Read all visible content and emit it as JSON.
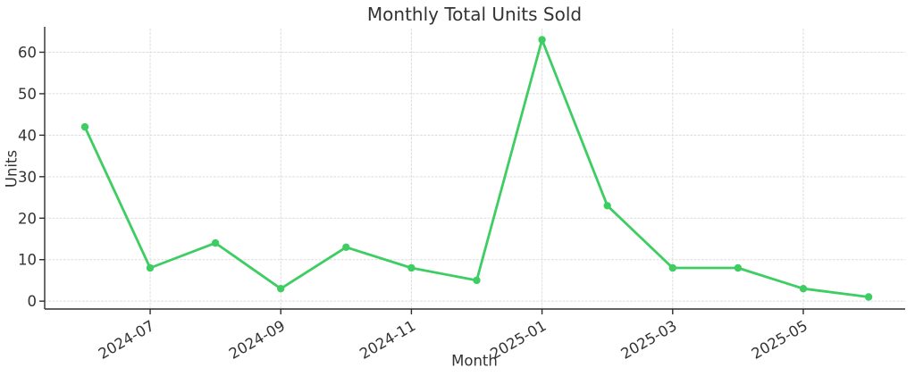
{
  "chart_data": {
    "type": "line",
    "title": "Monthly Total Units Sold",
    "xlabel": "Month",
    "ylabel": "Units",
    "categories": [
      "2024-06",
      "2024-07",
      "2024-08",
      "2024-09",
      "2024-10",
      "2024-11",
      "2024-12",
      "2025-01",
      "2025-02",
      "2025-03",
      "2025-04",
      "2025-05",
      "2025-06"
    ],
    "values": [
      42,
      8,
      14,
      3,
      13,
      8,
      5,
      63,
      23,
      8,
      8,
      3,
      1
    ],
    "x_tick_labels": [
      "2024-07",
      "2024-09",
      "2024-11",
      "2025-01",
      "2025-03",
      "2025-05"
    ],
    "y_ticks": [
      0,
      10,
      20,
      30,
      40,
      50,
      60
    ],
    "ylim": [
      -1.9,
      65.7
    ],
    "grid": "dashed",
    "legend": "none",
    "line_color": "#3ecd62",
    "marker": "circle",
    "grid_color": "#dcdcdc",
    "axis_color": "#2e2e2e",
    "text_color": "#333333",
    "background": "#ffffff"
  }
}
